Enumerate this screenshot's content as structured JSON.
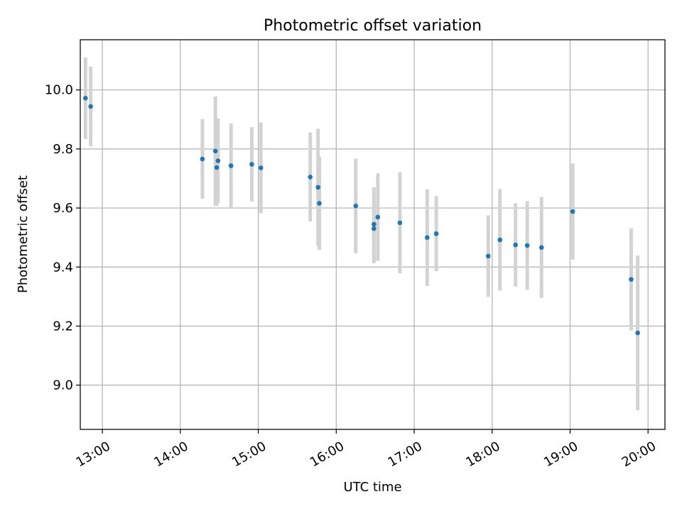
{
  "chart_data": {
    "type": "scatter",
    "title": "Photometric offset variation",
    "xlabel": "UTC time",
    "ylabel": "Photometric offset",
    "x_is_time": true,
    "xlim": [
      "12:43",
      "20:13"
    ],
    "ylim": [
      8.85,
      10.17
    ],
    "grid": true,
    "x_ticks": [
      "13:00",
      "14:00",
      "15:00",
      "16:00",
      "17:00",
      "18:00",
      "19:00",
      "20:00"
    ],
    "y_ticks": [
      9.0,
      9.2,
      9.4,
      9.6,
      9.8,
      10.0
    ],
    "y_tick_labels": [
      "9.0",
      "9.2",
      "9.4",
      "9.6",
      "9.8",
      "10.0"
    ],
    "colors": {
      "point": "#1f77b4",
      "errorbar": "#d3d3d3",
      "grid": "#b0b0b0",
      "frame": "#000000"
    },
    "points": [
      {
        "x": "12:47",
        "y": 9.972,
        "err": 0.138
      },
      {
        "x": "12:51",
        "y": 9.944,
        "err": 0.135
      },
      {
        "x": "14:17",
        "y": 9.766,
        "err": 0.135
      },
      {
        "x": "14:27",
        "y": 9.793,
        "err": 0.185
      },
      {
        "x": "14:28",
        "y": 9.737,
        "err": 0.13
      },
      {
        "x": "14:29",
        "y": 9.76,
        "err": 0.143
      },
      {
        "x": "14:39",
        "y": 9.743,
        "err": 0.143
      },
      {
        "x": "14:55",
        "y": 9.748,
        "err": 0.126
      },
      {
        "x": "15:02",
        "y": 9.736,
        "err": 0.154
      },
      {
        "x": "15:40",
        "y": 9.705,
        "err": 0.151
      },
      {
        "x": "15:46",
        "y": 9.67,
        "err": 0.199
      },
      {
        "x": "15:47",
        "y": 9.616,
        "err": 0.158
      },
      {
        "x": "16:15",
        "y": 9.607,
        "err": 0.16
      },
      {
        "x": "16:29",
        "y": 9.545,
        "err": 0.125
      },
      {
        "x": "16:29",
        "y": 9.53,
        "err": 0.117
      },
      {
        "x": "16:32",
        "y": 9.569,
        "err": 0.148
      },
      {
        "x": "16:49",
        "y": 9.55,
        "err": 0.171
      },
      {
        "x": "17:10",
        "y": 9.5,
        "err": 0.164
      },
      {
        "x": "17:17",
        "y": 9.513,
        "err": 0.127
      },
      {
        "x": "17:57",
        "y": 9.437,
        "err": 0.138
      },
      {
        "x": "18:06",
        "y": 9.492,
        "err": 0.172
      },
      {
        "x": "18:18",
        "y": 9.475,
        "err": 0.141
      },
      {
        "x": "18:27",
        "y": 9.473,
        "err": 0.15
      },
      {
        "x": "18:38",
        "y": 9.466,
        "err": 0.171
      },
      {
        "x": "19:02",
        "y": 9.588,
        "err": 0.163
      },
      {
        "x": "19:47",
        "y": 9.358,
        "err": 0.173
      },
      {
        "x": "19:52",
        "y": 9.177,
        "err": 0.262
      }
    ]
  }
}
